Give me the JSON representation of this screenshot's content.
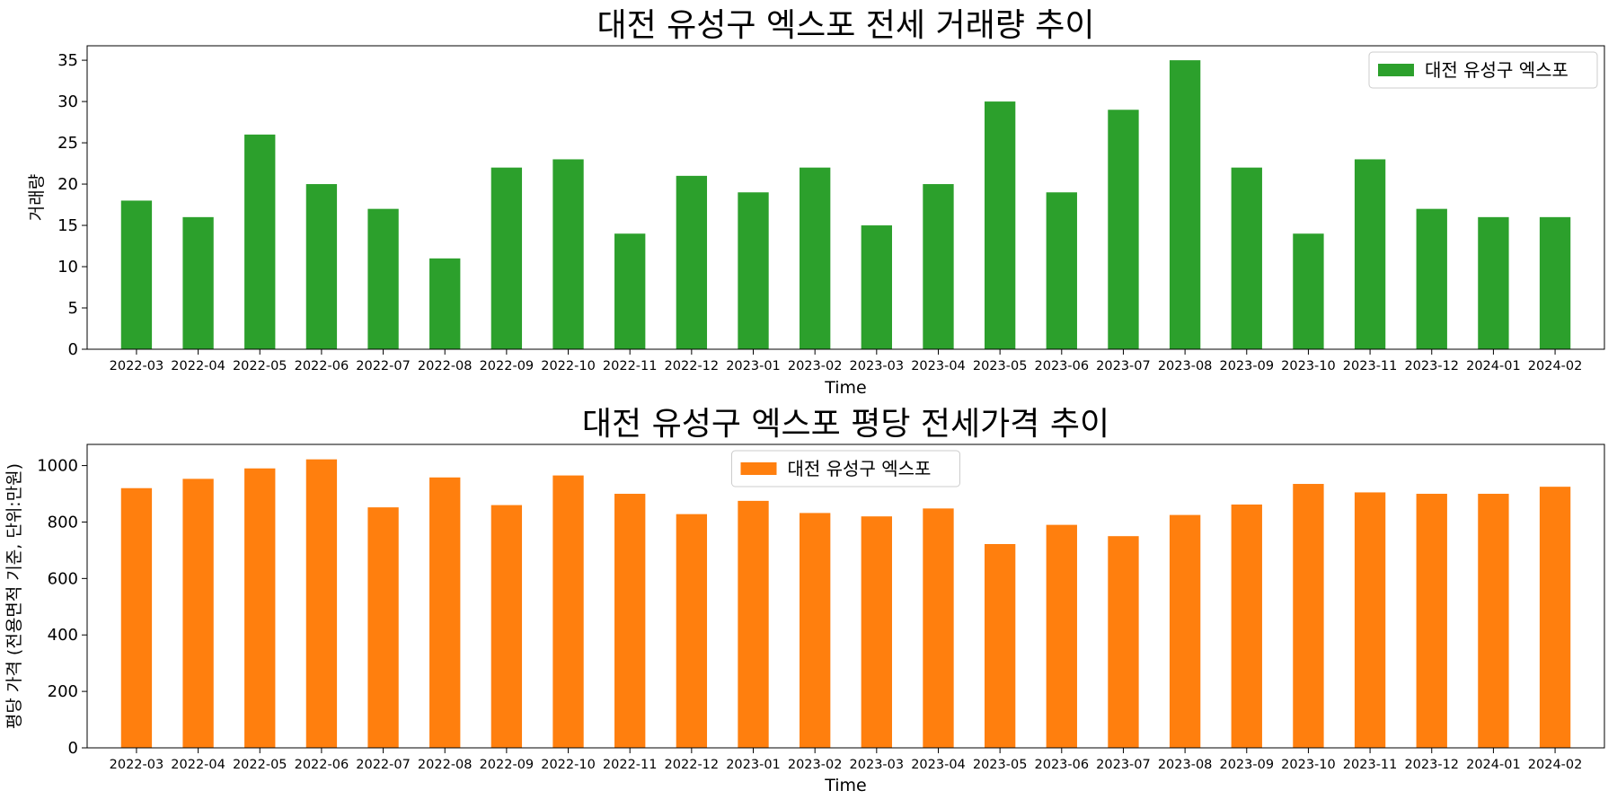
{
  "chart_data": [
    {
      "type": "bar",
      "title": "대전 유성구 엑스포 전세 거래량 추이",
      "xlabel": "Time",
      "ylabel": "거래량",
      "categories": [
        "2022-03",
        "2022-04",
        "2022-05",
        "2022-06",
        "2022-07",
        "2022-08",
        "2022-09",
        "2022-10",
        "2022-11",
        "2022-12",
        "2023-01",
        "2023-02",
        "2023-03",
        "2023-04",
        "2023-05",
        "2023-06",
        "2023-07",
        "2023-08",
        "2023-09",
        "2023-10",
        "2023-11",
        "2023-12",
        "2024-01",
        "2024-02"
      ],
      "series": [
        {
          "name": "대전 유성구 엑스포",
          "color": "#2ca02c",
          "values": [
            18,
            16,
            26,
            20,
            17,
            11,
            22,
            23,
            14,
            21,
            19,
            22,
            15,
            20,
            30,
            19,
            29,
            35,
            22,
            14,
            23,
            17,
            16,
            16
          ]
        }
      ],
      "ylim": [
        0,
        36.75
      ],
      "yticks": [
        0,
        5,
        10,
        15,
        20,
        25,
        30,
        35
      ],
      "legend_position": "upper right",
      "grid": false
    },
    {
      "type": "bar",
      "title": "대전 유성구 엑스포 평당 전세가격 추이",
      "xlabel": "Time",
      "ylabel": "평당 가격 (전용면적 기준, 단위:만원)",
      "categories": [
        "2022-03",
        "2022-04",
        "2022-05",
        "2022-06",
        "2022-07",
        "2022-08",
        "2022-09",
        "2022-10",
        "2022-11",
        "2022-12",
        "2023-01",
        "2023-02",
        "2023-03",
        "2023-04",
        "2023-05",
        "2023-06",
        "2023-07",
        "2023-08",
        "2023-09",
        "2023-10",
        "2023-11",
        "2023-12",
        "2024-01",
        "2024-02"
      ],
      "series": [
        {
          "name": "대전 유성구 엑스포",
          "color": "#ff7f0e",
          "values": [
            920,
            953,
            990,
            1022,
            852,
            958,
            860,
            965,
            900,
            828,
            875,
            832,
            820,
            848,
            722,
            790,
            750,
            825,
            862,
            935,
            905,
            900,
            900,
            925
          ]
        }
      ],
      "ylim": [
        0,
        1075
      ],
      "yticks": [
        0,
        200,
        400,
        600,
        800,
        1000
      ],
      "legend_position": "upper center",
      "grid": false
    }
  ]
}
